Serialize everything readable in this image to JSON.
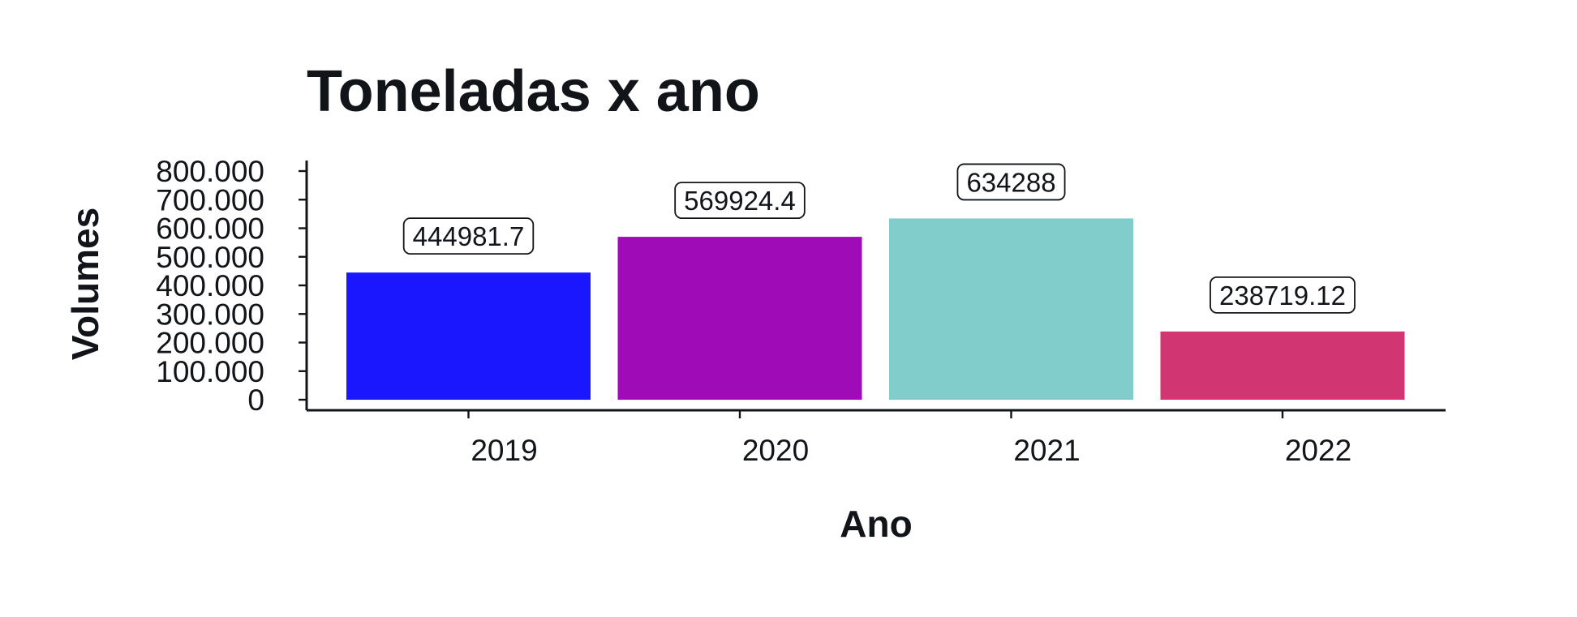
{
  "chart_data": {
    "type": "bar",
    "title": "Toneladas x ano",
    "xlabel": "Ano",
    "ylabel": "Volumes",
    "categories": [
      "2019",
      "2020",
      "2021",
      "2022"
    ],
    "values": [
      444981.7,
      569924.4,
      634288,
      238719.12
    ],
    "data_labels": [
      "444981.7",
      "569924.4",
      "634288",
      "238719.12"
    ],
    "colors": [
      "#1a17ff",
      "#a00bb8",
      "#80cdcb",
      "#d13672"
    ],
    "ylim": [
      0,
      800000
    ],
    "y_ticks": [
      0,
      100000,
      200000,
      300000,
      400000,
      500000,
      600000,
      700000,
      800000
    ],
    "y_tick_labels": [
      "0",
      "100.000",
      "200.000",
      "300.000",
      "400.000",
      "500.000",
      "600.000",
      "700.000",
      "800.000"
    ],
    "grid": false,
    "legend": "none"
  }
}
